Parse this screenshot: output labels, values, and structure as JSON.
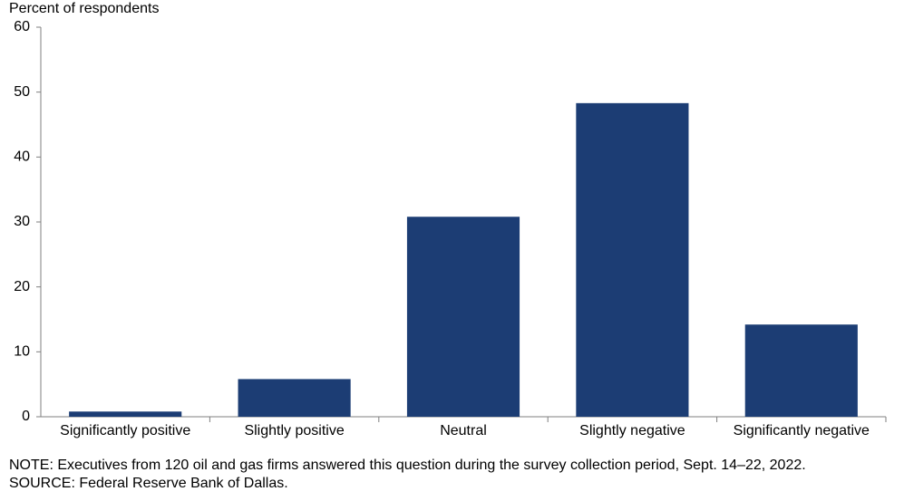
{
  "chart_data": {
    "type": "bar",
    "y_label": "Percent of respondents",
    "categories": [
      "Significantly positive",
      "Slightly positive",
      "Neutral",
      "Slightly negative",
      "Significantly negative"
    ],
    "values": [
      0.8,
      5.8,
      30.8,
      48.3,
      14.2
    ],
    "color": "#1c3d74",
    "ylim": [
      0,
      60
    ],
    "yticks": [
      0,
      10,
      20,
      30,
      40,
      50,
      60
    ],
    "grid": false,
    "note": "NOTE:  Executives  from 120 oil and gas firms answered this question during the survey collection period, Sept. 14–22, 2022.",
    "source": "SOURCE:  Federal Reserve Bank of Dallas."
  }
}
